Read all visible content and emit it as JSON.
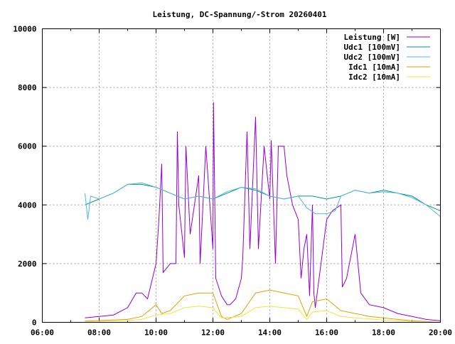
{
  "chart_data": {
    "type": "line",
    "title": "Leistung, DC-Spannung/-Strom 20260401",
    "xlabel": "",
    "ylabel": "",
    "xlim": [
      6,
      20
    ],
    "ylim": [
      0,
      10000
    ],
    "x_ticks": [
      "06:00",
      "08:00",
      "10:00",
      "12:00",
      "14:00",
      "16:00",
      "18:00",
      "20:00"
    ],
    "y_ticks": [
      "0",
      "2000",
      "4000",
      "6000",
      "8000",
      "10000"
    ],
    "grid": true,
    "legend_position": "top-right",
    "series": [
      {
        "name": "Leistung [W]",
        "color": "#9400d3",
        "x": [
          7.5,
          8,
          8.5,
          9,
          9.3,
          9.5,
          9.7,
          10,
          10.1,
          10.2,
          10.25,
          10.5,
          10.7,
          10.75,
          10.8,
          11,
          11.05,
          11.2,
          11.5,
          11.55,
          11.75,
          12,
          12.02,
          12.1,
          12.3,
          12.5,
          12.6,
          12.8,
          13,
          13.05,
          13.2,
          13.3,
          13.5,
          13.6,
          13.8,
          14,
          14.05,
          14.2,
          14.3,
          14.5,
          14.6,
          14.8,
          15,
          15.1,
          15.2,
          15.3,
          15.4,
          15.5,
          15.55,
          15.6,
          15.8,
          16,
          16.2,
          16.5,
          16.55,
          16.7,
          17,
          17.2,
          17.5,
          18,
          18.5,
          19,
          19.5,
          20
        ],
        "y": [
          150,
          200,
          250,
          500,
          1000,
          1000,
          800,
          2000,
          3500,
          5400,
          1700,
          2000,
          2000,
          6500,
          4000,
          2200,
          6000,
          3000,
          5000,
          2000,
          6000,
          2500,
          7500,
          1500,
          900,
          600,
          600,
          800,
          1500,
          2200,
          6500,
          2500,
          7000,
          2500,
          6000,
          4200,
          6200,
          2000,
          6000,
          6000,
          5000,
          4000,
          3500,
          1500,
          2500,
          3000,
          900,
          4000,
          1000,
          500,
          2000,
          3500,
          3800,
          4000,
          1200,
          1500,
          3000,
          1000,
          600,
          500,
          300,
          200,
          100,
          50
        ]
      },
      {
        "name": "Udc1 [100mV]",
        "color": "#009e73",
        "x": [
          7.5,
          8,
          8.5,
          9,
          9.5,
          10,
          10.5,
          11,
          11.5,
          12,
          12.5,
          13,
          13.5,
          14,
          14.5,
          15,
          15.5,
          16,
          16.5,
          17,
          17.5,
          18,
          18.5,
          19,
          19.5,
          20
        ],
        "y": [
          4000,
          4200,
          4400,
          4700,
          4700,
          4600,
          4400,
          4200,
          4300,
          4200,
          4400,
          4600,
          4500,
          4300,
          4200,
          4300,
          4300,
          4200,
          4300,
          4500,
          4400,
          4500,
          4400,
          4300,
          4000,
          3800
        ]
      },
      {
        "name": "Udc2 [100mV]",
        "color": "#56b4e9",
        "x": [
          7.5,
          7.6,
          7.7,
          8,
          8.5,
          9,
          9.5,
          10,
          10.5,
          11,
          11.5,
          12,
          12.5,
          13,
          13.5,
          14,
          14.5,
          15,
          15.3,
          15.6,
          16,
          16.3,
          16.5,
          17,
          17.5,
          18,
          18.5,
          19,
          19.5,
          20
        ],
        "y": [
          4400,
          3500,
          4300,
          4200,
          4400,
          4700,
          4750,
          4600,
          4400,
          4200,
          4300,
          4200,
          4450,
          4600,
          4550,
          4300,
          4200,
          4300,
          3900,
          3700,
          3700,
          3800,
          4300,
          4500,
          4400,
          4450,
          4400,
          4250,
          4000,
          3600
        ]
      },
      {
        "name": "Idc1 [10mA]",
        "color": "#e69f00",
        "x": [
          7.5,
          8,
          9,
          9.5,
          10,
          10.2,
          10.5,
          11,
          11.5,
          12,
          12.3,
          12.5,
          13,
          13.5,
          14,
          14.5,
          15,
          15.3,
          15.5,
          16,
          16.5,
          17,
          17.5,
          18,
          18.5,
          19,
          19.5,
          20
        ],
        "y": [
          50,
          60,
          100,
          200,
          600,
          300,
          400,
          900,
          1000,
          1000,
          200,
          100,
          300,
          1000,
          1100,
          1000,
          900,
          200,
          700,
          800,
          400,
          300,
          200,
          150,
          100,
          50,
          30,
          0
        ]
      },
      {
        "name": "Idc2 [10mA]",
        "color": "#f0e442",
        "x": [
          7.5,
          8,
          9,
          9.5,
          10,
          10.5,
          11,
          11.5,
          12,
          12.3,
          13,
          13.5,
          14,
          14.5,
          15,
          15.3,
          15.5,
          16,
          16.5,
          17,
          18,
          19,
          20
        ],
        "y": [
          20,
          30,
          60,
          100,
          250,
          300,
          500,
          550,
          500,
          150,
          200,
          500,
          550,
          500,
          450,
          100,
          350,
          400,
          200,
          150,
          80,
          30,
          0
        ]
      }
    ]
  }
}
